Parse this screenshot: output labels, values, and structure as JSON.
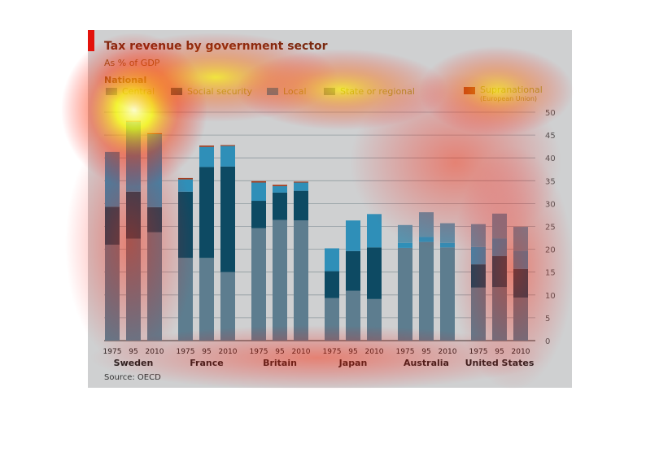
{
  "header": {
    "title": "Tax revenue by government sector",
    "subtitle": "As % of GDP",
    "legend_heading": "National",
    "source": "Source: OECD"
  },
  "legend": [
    {
      "label": "Central",
      "note": "",
      "color": "#5d7d8f"
    },
    {
      "label": "Social security",
      "note": "",
      "color": "#0d4a63"
    },
    {
      "label": "Local",
      "note": "",
      "color": "#2f8fb8"
    },
    {
      "label": "State or regional",
      "note": "",
      "color": "#6f7f86"
    },
    {
      "label": "Supranational",
      "note": "(European Union)",
      "color": "#a33c1d"
    }
  ],
  "chart_data": {
    "type": "bar",
    "stacked": true,
    "ylim": [
      0,
      50
    ],
    "yticks": [
      0,
      5,
      10,
      15,
      20,
      25,
      30,
      35,
      40,
      45,
      50
    ],
    "grid": true,
    "axis_position": "right",
    "segment_order": [
      "Central",
      "Social security",
      "Local",
      "State or regional",
      "Supranational"
    ],
    "colors": {
      "Central": "#5d7d8f",
      "Social security": "#0d4a63",
      "Local": "#2f8fb8",
      "State or regional": "#5a93ad",
      "Supranational": "#a33c1d"
    },
    "groups": [
      {
        "country": "Sweden",
        "bars": [
          {
            "year": "1975",
            "Central": 21,
            "Social security": 8.3,
            "Local": 12,
            "State or regional": 0,
            "Supranational": 0
          },
          {
            "year": "95",
            "Central": 22.3,
            "Social security": 10.3,
            "Local": 15.3,
            "State or regional": 0,
            "Supranational": 0.2
          },
          {
            "year": "2010",
            "Central": 23.7,
            "Social security": 5.5,
            "Local": 16,
            "State or regional": 0,
            "Supranational": 0.2
          }
        ]
      },
      {
        "country": "France",
        "bars": [
          {
            "year": "1975",
            "Central": 18.1,
            "Social security": 14.5,
            "Local": 2.7,
            "State or regional": 0,
            "Supranational": 0.3
          },
          {
            "year": "95",
            "Central": 18.1,
            "Social security": 19.9,
            "Local": 4.4,
            "State or regional": 0,
            "Supranational": 0.3
          },
          {
            "year": "2010",
            "Central": 15,
            "Social security": 23.1,
            "Local": 4.5,
            "State or regional": 0,
            "Supranational": 0.2
          }
        ]
      },
      {
        "country": "Britain",
        "bars": [
          {
            "year": "1975",
            "Central": 24.6,
            "Social security": 6,
            "Local": 4,
            "State or regional": 0,
            "Supranational": 0.3
          },
          {
            "year": "95",
            "Central": 26.4,
            "Social security": 6,
            "Local": 1.4,
            "State or regional": 0,
            "Supranational": 0.3
          },
          {
            "year": "2010",
            "Central": 26.3,
            "Social security": 6.5,
            "Local": 1.8,
            "State or regional": 0,
            "Supranational": 0.2
          }
        ]
      },
      {
        "country": "Japan",
        "bars": [
          {
            "year": "1975",
            "Central": 9.3,
            "Social security": 5.9,
            "Local": 5,
            "State or regional": 0,
            "Supranational": 0
          },
          {
            "year": "95",
            "Central": 10.9,
            "Social security": 8.7,
            "Local": 6.7,
            "State or regional": 0,
            "Supranational": 0
          },
          {
            "year": "2010",
            "Central": 9.1,
            "Social security": 11.3,
            "Local": 7.3,
            "State or regional": 0,
            "Supranational": 0
          }
        ]
      },
      {
        "country": "Australia",
        "bars": [
          {
            "year": "1975",
            "Central": 20.3,
            "Social security": 0,
            "Local": 1.1,
            "State or regional": 3.9,
            "Supranational": 0
          },
          {
            "year": "95",
            "Central": 21.6,
            "Social security": 0,
            "Local": 1.1,
            "State or regional": 5.4,
            "Supranational": 0
          },
          {
            "year": "2010",
            "Central": 20.4,
            "Social security": 0,
            "Local": 1,
            "State or regional": 4.3,
            "Supranational": 0
          }
        ]
      },
      {
        "country": "United States",
        "bars": [
          {
            "year": "1975",
            "Central": 11.6,
            "Social security": 5.1,
            "Local": 3.8,
            "State or regional": 5,
            "Supranational": 0
          },
          {
            "year": "95",
            "Central": 11.7,
            "Social security": 6.8,
            "Local": 3.9,
            "State or regional": 5.4,
            "Supranational": 0
          },
          {
            "year": "2010",
            "Central": 9.4,
            "Social security": 6.3,
            "Local": 4,
            "State or regional": 5.2,
            "Supranational": 0
          }
        ]
      }
    ]
  }
}
